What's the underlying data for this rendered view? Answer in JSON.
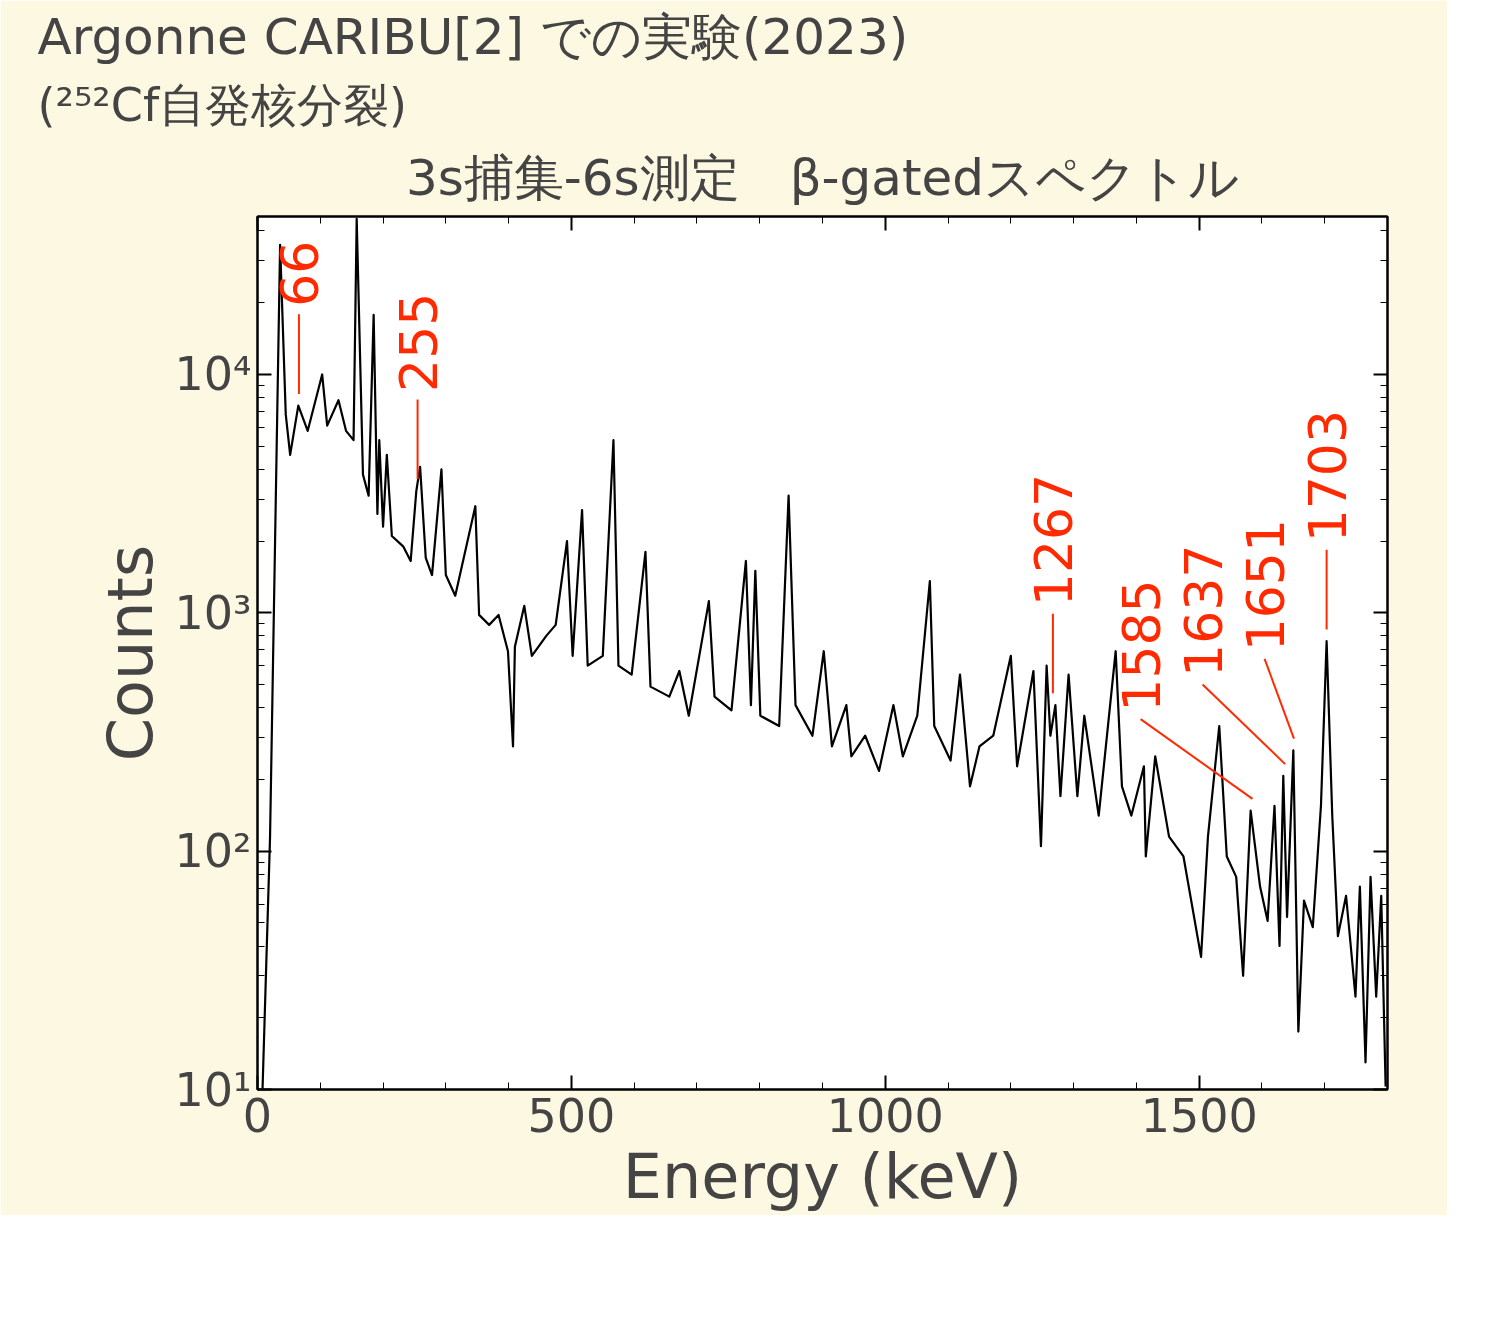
{
  "chart_data": {
    "type": "line",
    "title": "Argonne CARIBU[2] での実験(2023)",
    "subtitle": "(²⁵²Cf自発核分裂)",
    "annotations": [
      "3s捕集-6s測定　β-gatedスペクトル",
      {
        "text": "66",
        "x": 66,
        "y": 7400
      },
      {
        "text": "255",
        "x": 255,
        "y": 3250
      },
      {
        "text": "1267",
        "x": 1267,
        "y": 410
      },
      {
        "text": "1585",
        "x": 1585,
        "y": 148
      },
      {
        "text": "1637",
        "x": 1637,
        "y": 207
      },
      {
        "text": "1651",
        "x": 1651,
        "y": 265
      },
      {
        "text": "1703",
        "x": 1703,
        "y": 760
      }
    ],
    "xlabel": "Energy (keV)",
    "ylabel": "Counts",
    "xlim": [
      0,
      1800
    ],
    "xticks": [
      0,
      500,
      1000,
      1500
    ],
    "ylim": [
      10,
      46000
    ],
    "yticks": [
      {
        "value": 10,
        "label": "10¹"
      },
      {
        "value": 100,
        "label": "10²"
      },
      {
        "value": 1000,
        "label": "10³"
      },
      {
        "value": 10000,
        "label": "10⁴"
      }
    ],
    "log": "y",
    "grid": false,
    "marker": "none",
    "line_style": "solid",
    "series": [
      {
        "color": "#000000",
        "x": [
          8,
          20,
          36,
          45,
          52,
          65,
          80,
          103,
          111,
          129,
          141,
          153,
          158,
          168,
          177,
          185,
          191,
          194,
          200,
          206,
          214,
          232,
          244,
          253,
          259,
          268,
          278,
          293,
          300,
          315,
          347,
          353,
          369,
          384,
          399,
          407,
          410,
          425,
          437,
          460,
          475,
          493,
          502,
          517,
          526,
          550,
          567,
          575,
          596,
          618,
          626,
          656,
          672,
          687,
          719,
          728,
          755,
          778,
          786,
          793,
          801,
          831,
          846,
          857,
          884,
          902,
          915,
          938,
          946,
          968,
          990,
          1013,
          1028,
          1051,
          1071,
          1078,
          1104,
          1119,
          1135,
          1150,
          1172,
          1200,
          1210,
          1236,
          1248,
          1257,
          1263,
          1271,
          1279,
          1292,
          1306,
          1317,
          1340,
          1367,
          1377,
          1392,
          1412,
          1415,
          1430,
          1452,
          1475,
          1503,
          1514,
          1532,
          1544,
          1559,
          1570,
          1582,
          1597,
          1609,
          1620,
          1628,
          1634,
          1640,
          1650,
          1658,
          1667,
          1681,
          1694,
          1703,
          1712,
          1721,
          1734,
          1749,
          1756,
          1765,
          1773,
          1782,
          1790,
          1797
        ],
        "values": [
          10,
          115,
          35000,
          6800,
          4600,
          7400,
          5800,
          10000,
          6100,
          7800,
          5800,
          5300,
          45000,
          3800,
          3100,
          17800,
          2600,
          5300,
          2300,
          4600,
          2100,
          1900,
          1650,
          3250,
          4100,
          1700,
          1440,
          4000,
          1440,
          1180,
          2800,
          980,
          890,
          980,
          690,
          275,
          720,
          1070,
          660,
          800,
          890,
          2000,
          660,
          2700,
          600,
          660,
          5300,
          600,
          550,
          1800,
          490,
          445,
          570,
          370,
          1120,
          445,
          390,
          1650,
          410,
          1500,
          370,
          335,
          3100,
          410,
          305,
          690,
          275,
          410,
          250,
          305,
          217,
          410,
          250,
          370,
          1360,
          335,
          240,
          550,
          187,
          275,
          305,
          660,
          227,
          570,
          105,
          600,
          305,
          410,
          170,
          550,
          170,
          370,
          141,
          690,
          187,
          141,
          227,
          95,
          250,
          115,
          95,
          36,
          115,
          335,
          95,
          78,
          30,
          148,
          71,
          51,
          155,
          40,
          207,
          53,
          265,
          17.5,
          62,
          48,
          155,
          760,
          141,
          44,
          65,
          24.5,
          71,
          13,
          78,
          24.5,
          65,
          10.3
        ]
      }
    ]
  }
}
